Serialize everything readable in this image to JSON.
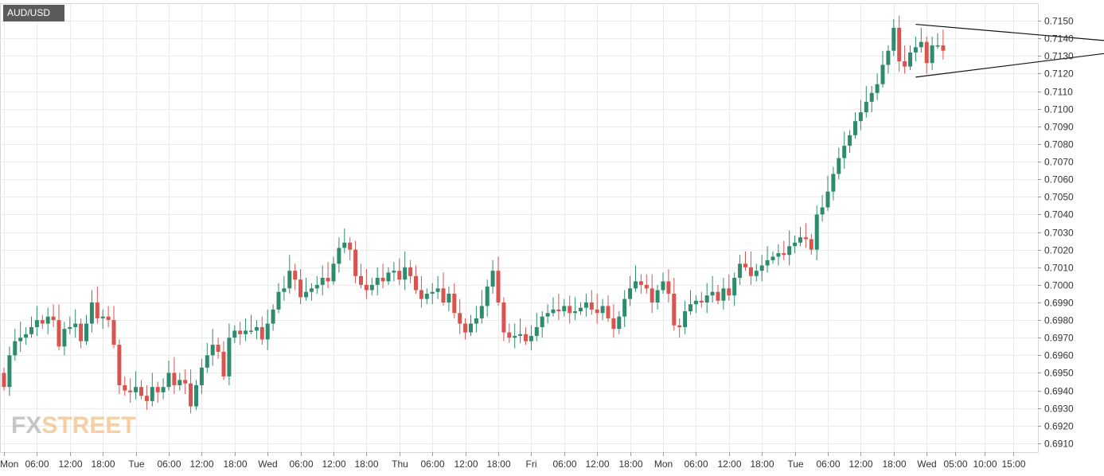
{
  "chart_data": {
    "type": "candlestick",
    "symbol": "AUD/USD",
    "y_ticks": [
      "0.6910",
      "0.6920",
      "0.6930",
      "0.6940",
      "0.6950",
      "0.6960",
      "0.6970",
      "0.6980",
      "0.6990",
      "0.7000",
      "0.7010",
      "0.7020",
      "0.7030",
      "0.7040",
      "0.7050",
      "0.7060",
      "0.7070",
      "0.7080",
      "0.7090",
      "0.7100",
      "0.7110",
      "0.7120",
      "0.7130",
      "0.7140",
      "0.7150"
    ],
    "ylim": [
      0.6905,
      0.716
    ],
    "x_labels": [
      "Mon",
      "06:00",
      "12:00",
      "18:00",
      "Tue",
      "06:00",
      "12:00",
      "18:00",
      "Wed",
      "06:00",
      "12:00",
      "18:00",
      "Thu",
      "06:00",
      "12:00",
      "18:00",
      "Fri",
      "06:00",
      "12:00",
      "18:00",
      "Mon",
      "06:00",
      "12:00",
      "18:00",
      "Tue",
      "06:00",
      "12:00",
      "18:00",
      "Wed",
      "05:00",
      "10:00",
      "15:00"
    ],
    "grid": true,
    "up_color": "#2e8b6e",
    "down_color": "#d9534f",
    "closes": [
      0.6942,
      0.696,
      0.6968,
      0.697,
      0.6972,
      0.6976,
      0.698,
      0.6978,
      0.6982,
      0.698,
      0.6965,
      0.6975,
      0.6976,
      0.6978,
      0.6968,
      0.6978,
      0.699,
      0.6981,
      0.6982,
      0.698,
      0.6966,
      0.6943,
      0.694,
      0.6939,
      0.6942,
      0.6937,
      0.6934,
      0.6942,
      0.6939,
      0.6942,
      0.695,
      0.6943,
      0.6946,
      0.6944,
      0.6931,
      0.6943,
      0.6953,
      0.696,
      0.6966,
      0.6962,
      0.6948,
      0.697,
      0.6974,
      0.6972,
      0.6974,
      0.6974,
      0.6976,
      0.6969,
      0.6978,
      0.6986,
      0.6996,
      0.6998,
      0.7008,
      0.7003,
      0.6993,
      0.6996,
      0.6998,
      0.7,
      0.7004,
      0.7002,
      0.7012,
      0.7021,
      0.7024,
      0.702,
      0.7005,
      0.7,
      0.6997,
      0.7,
      0.7004,
      0.7002,
      0.7007,
      0.7008,
      0.7003,
      0.701,
      0.7005,
      0.6997,
      0.6992,
      0.6995,
      0.6996,
      0.6998,
      0.699,
      0.6995,
      0.6984,
      0.6978,
      0.6973,
      0.6978,
      0.6981,
      0.6988,
      0.6999,
      0.7008,
      0.699,
      0.6973,
      0.697,
      0.6971,
      0.6972,
      0.6968,
      0.6971,
      0.6976,
      0.6982,
      0.6984,
      0.6986,
      0.6985,
      0.6988,
      0.6984,
      0.6985,
      0.6987,
      0.699,
      0.6986,
      0.6984,
      0.6988,
      0.6981,
      0.6975,
      0.6982,
      0.6992,
      0.6998,
      0.7002,
      0.7,
      0.6998,
      0.699,
      0.6997,
      0.7002,
      0.6995,
      0.6977,
      0.6976,
      0.6985,
      0.6989,
      0.6991,
      0.699,
      0.6994,
      0.6996,
      0.6991,
      0.6998,
      0.6994,
      0.7004,
      0.7012,
      0.701,
      0.7005,
      0.7008,
      0.7011,
      0.7014,
      0.7016,
      0.7018,
      0.7017,
      0.7022,
      0.7024,
      0.7027,
      0.7026,
      0.702,
      0.704,
      0.7044,
      0.7053,
      0.7063,
      0.7072,
      0.7079,
      0.7085,
      0.7093,
      0.7098,
      0.7104,
      0.7109,
      0.7114,
      0.7125,
      0.7133,
      0.7146,
      0.7127,
      0.7124,
      0.7132,
      0.7135,
      0.7138,
      0.7126,
      0.7136,
      0.7136,
      0.7133
    ],
    "triangle": {
      "upper_start": [
        166,
        0.7148
      ],
      "upper_end": [
        207,
        0.7137
      ],
      "lower_start": [
        166,
        0.7118
      ],
      "lower_end": [
        207,
        0.7134
      ]
    }
  },
  "header": {
    "symbol_label": "AUD/USD"
  },
  "logo": {
    "part1": "FX",
    "part2": "STREET"
  }
}
